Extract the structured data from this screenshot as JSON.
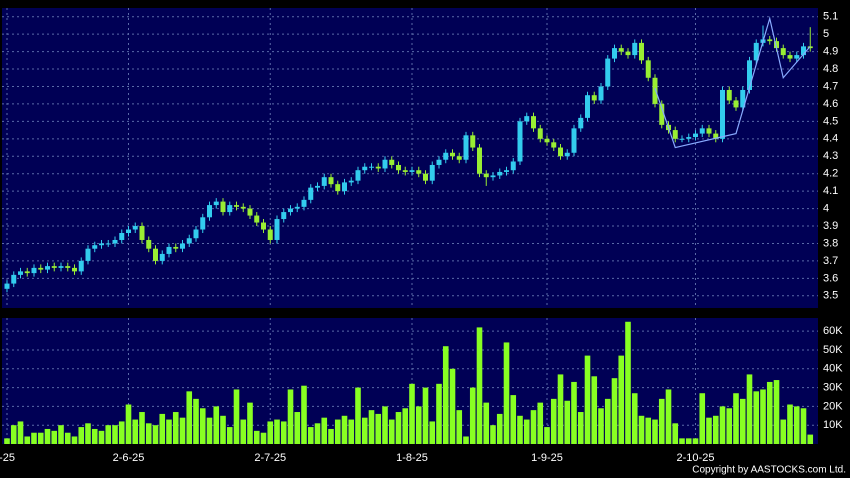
{
  "chart_data": {
    "type": "candlestick",
    "categories": [
      "-25",
      null,
      null,
      null,
      null,
      null,
      null,
      null,
      null,
      null,
      null,
      null,
      null,
      null,
      null,
      null,
      null,
      null,
      "2-6-25",
      null,
      null,
      null,
      null,
      null,
      null,
      null,
      null,
      null,
      null,
      null,
      null,
      null,
      null,
      null,
      null,
      null,
      null,
      null,
      null,
      "2-7-25",
      null,
      null,
      null,
      null,
      null,
      null,
      null,
      null,
      null,
      null,
      null,
      null,
      null,
      null,
      null,
      null,
      null,
      null,
      null,
      null,
      "1-8-25",
      null,
      null,
      null,
      null,
      null,
      null,
      null,
      null,
      null,
      null,
      null,
      null,
      null,
      null,
      null,
      null,
      null,
      null,
      null,
      "1-9-25",
      null,
      null,
      null,
      null,
      null,
      null,
      null,
      null,
      null,
      null,
      null,
      null,
      null,
      null,
      null,
      null,
      null,
      null,
      null,
      null,
      null,
      "2-10-25",
      null,
      null,
      null,
      null,
      null,
      null,
      null,
      null,
      null,
      null,
      null,
      null,
      null,
      null,
      null,
      null,
      null
    ],
    "open": [
      3.54,
      3.57,
      3.62,
      3.64,
      3.63,
      3.66,
      3.65,
      3.67,
      3.66,
      3.67,
      3.66,
      3.64,
      3.7,
      3.77,
      3.79,
      3.8,
      3.8,
      3.82,
      3.86,
      3.88,
      3.9,
      3.82,
      3.77,
      3.7,
      3.74,
      3.78,
      3.77,
      3.8,
      3.83,
      3.88,
      3.95,
      4.02,
      4.04,
      3.98,
      4.02,
      4.01,
      4.0,
      3.96,
      3.92,
      3.88,
      3.82,
      3.94,
      3.98,
      4.0,
      4.01,
      4.05,
      4.12,
      4.13,
      4.18,
      4.14,
      4.1,
      4.15,
      4.16,
      4.22,
      4.24,
      4.24,
      4.23,
      4.28,
      4.25,
      4.22,
      4.21,
      4.22,
      4.2,
      4.16,
      4.25,
      4.28,
      4.32,
      4.3,
      4.28,
      4.42,
      4.35,
      4.2,
      4.18,
      4.19,
      4.21,
      4.22,
      4.27,
      4.5,
      4.53,
      4.46,
      4.4,
      4.38,
      4.35,
      4.3,
      4.32,
      4.46,
      4.52,
      4.65,
      4.62,
      4.7,
      4.86,
      4.92,
      4.9,
      4.88,
      4.95,
      4.85,
      4.75,
      4.6,
      4.48,
      4.45,
      4.4,
      4.4,
      4.41,
      4.43,
      4.46,
      4.43,
      4.4,
      4.68,
      4.62,
      4.58,
      4.68,
      4.85,
      4.95,
      4.97,
      4.96,
      4.92,
      4.88,
      4.86,
      4.88,
      4.93
    ],
    "high": [
      3.59,
      3.64,
      3.66,
      3.66,
      3.68,
      3.68,
      3.69,
      3.69,
      3.69,
      3.69,
      3.68,
      3.72,
      3.79,
      3.81,
      3.82,
      3.82,
      3.84,
      3.88,
      3.9,
      3.92,
      3.92,
      3.84,
      3.79,
      3.76,
      3.8,
      3.8,
      3.82,
      3.85,
      3.9,
      3.97,
      4.04,
      4.06,
      4.06,
      4.04,
      4.04,
      4.03,
      4.02,
      3.98,
      3.94,
      3.9,
      3.96,
      4.0,
      4.02,
      4.03,
      4.07,
      4.14,
      4.15,
      4.2,
      4.2,
      4.16,
      4.17,
      4.18,
      4.24,
      4.26,
      4.26,
      4.26,
      4.3,
      4.3,
      4.27,
      4.24,
      4.24,
      4.24,
      4.22,
      4.27,
      4.3,
      4.34,
      4.34,
      4.32,
      4.44,
      4.44,
      4.37,
      4.22,
      4.21,
      4.23,
      4.24,
      4.29,
      4.52,
      4.55,
      4.55,
      4.48,
      4.42,
      4.4,
      4.37,
      4.34,
      4.48,
      4.54,
      4.67,
      4.67,
      4.72,
      4.88,
      4.94,
      4.94,
      4.92,
      4.97,
      4.97,
      4.87,
      4.77,
      4.62,
      4.5,
      4.47,
      4.42,
      4.43,
      4.45,
      4.48,
      4.48,
      4.45,
      4.7,
      4.7,
      4.64,
      4.7,
      4.87,
      4.97,
      5.05,
      4.99,
      4.98,
      4.94,
      4.9,
      4.9,
      4.95,
      5.04
    ],
    "low": [
      3.52,
      3.55,
      3.6,
      3.61,
      3.61,
      3.63,
      3.63,
      3.64,
      3.64,
      3.64,
      3.62,
      3.62,
      3.68,
      3.75,
      3.77,
      3.78,
      3.78,
      3.8,
      3.84,
      3.86,
      3.8,
      3.75,
      3.68,
      3.68,
      3.72,
      3.75,
      3.75,
      3.78,
      3.81,
      3.86,
      3.93,
      4.0,
      3.96,
      3.96,
      3.99,
      3.98,
      3.94,
      3.9,
      3.86,
      3.8,
      3.8,
      3.92,
      3.96,
      3.98,
      3.99,
      4.03,
      4.1,
      4.11,
      4.12,
      4.08,
      4.08,
      4.13,
      4.14,
      4.2,
      4.22,
      4.21,
      4.21,
      4.23,
      4.2,
      4.19,
      4.19,
      4.18,
      4.14,
      4.14,
      4.23,
      4.26,
      4.28,
      4.26,
      4.26,
      4.33,
      4.18,
      4.13,
      4.16,
      4.17,
      4.19,
      4.2,
      4.25,
      4.48,
      4.44,
      4.38,
      4.36,
      4.33,
      4.28,
      4.28,
      4.3,
      4.44,
      4.5,
      4.6,
      4.6,
      4.68,
      4.84,
      4.88,
      4.86,
      4.86,
      4.83,
      4.73,
      4.58,
      4.46,
      4.43,
      4.38,
      4.38,
      4.38,
      4.39,
      4.41,
      4.41,
      4.38,
      4.38,
      4.6,
      4.56,
      4.56,
      4.66,
      4.83,
      4.93,
      4.94,
      4.9,
      4.86,
      4.84,
      4.84,
      4.86,
      4.9
    ],
    "close": [
      3.57,
      3.62,
      3.64,
      3.63,
      3.66,
      3.65,
      3.67,
      3.66,
      3.67,
      3.66,
      3.64,
      3.7,
      3.77,
      3.79,
      3.8,
      3.8,
      3.82,
      3.86,
      3.88,
      3.9,
      3.82,
      3.77,
      3.7,
      3.74,
      3.78,
      3.77,
      3.8,
      3.83,
      3.88,
      3.95,
      4.02,
      4.04,
      3.98,
      4.02,
      4.01,
      4.0,
      3.96,
      3.92,
      3.88,
      3.82,
      3.94,
      3.98,
      4.0,
      4.01,
      4.05,
      4.12,
      4.13,
      4.18,
      4.14,
      4.1,
      4.15,
      4.16,
      4.22,
      4.24,
      4.24,
      4.23,
      4.28,
      4.25,
      4.22,
      4.21,
      4.22,
      4.2,
      4.16,
      4.25,
      4.28,
      4.32,
      4.3,
      4.28,
      4.42,
      4.35,
      4.2,
      4.18,
      4.19,
      4.21,
      4.22,
      4.27,
      4.5,
      4.53,
      4.46,
      4.4,
      4.38,
      4.35,
      4.3,
      4.32,
      4.46,
      4.52,
      4.65,
      4.62,
      4.7,
      4.86,
      4.92,
      4.9,
      4.88,
      4.95,
      4.85,
      4.75,
      4.6,
      4.48,
      4.45,
      4.4,
      4.4,
      4.41,
      4.43,
      4.46,
      4.43,
      4.4,
      4.68,
      4.62,
      4.58,
      4.68,
      4.85,
      4.95,
      4.97,
      4.96,
      4.92,
      4.88,
      4.86,
      4.88,
      4.93,
      4.92
    ],
    "up_color": "#33ccee",
    "down_color": "#99ee33",
    "ylim": [
      3.43,
      5.15
    ],
    "yticks": [
      3.5,
      3.6,
      3.7,
      3.8,
      3.9,
      4,
      4.1,
      4.2,
      4.3,
      4.4,
      4.5,
      4.6,
      4.7,
      4.8,
      4.9,
      5,
      5.1
    ],
    "grid": true,
    "overlay": {
      "x": [
        96,
        99,
        108,
        113,
        115,
        119
      ],
      "values": [
        4.69,
        4.35,
        4.43,
        5.09,
        4.75,
        4.93
      ],
      "color": "#88aaff"
    },
    "volume": {
      "color": "#88ff22",
      "values": [
        3000,
        10000,
        12000,
        4000,
        6000,
        6000,
        8000,
        7000,
        10000,
        6000,
        4000,
        9000,
        11000,
        8000,
        7000,
        10000,
        10000,
        12000,
        21000,
        13000,
        17000,
        11000,
        10000,
        16000,
        13000,
        17000,
        14000,
        28000,
        24000,
        19000,
        14000,
        20000,
        15000,
        9000,
        29000,
        13000,
        22000,
        7000,
        6000,
        12000,
        13000,
        12000,
        29000,
        17000,
        31000,
        9000,
        11000,
        14000,
        8000,
        13000,
        15000,
        13000,
        30000,
        14000,
        18000,
        16000,
        20000,
        13000,
        17000,
        19000,
        32000,
        20000,
        30000,
        12000,
        32000,
        52000,
        40000,
        18000,
        4000,
        30000,
        62000,
        22000,
        10000,
        16000,
        54000,
        26000,
        15000,
        13000,
        18000,
        22000,
        9000,
        24000,
        37000,
        23000,
        33000,
        17000,
        47000,
        36000,
        19000,
        24000,
        35000,
        47000,
        65000,
        27000,
        15000,
        14000,
        13000,
        24000,
        29000,
        11000,
        3000,
        3000,
        3000,
        27000,
        14000,
        15000,
        20000,
        19000,
        27000,
        24000,
        37000,
        28000,
        29000,
        33000,
        34000,
        13000,
        21000,
        20000,
        19000,
        5000
      ],
      "ylim": [
        0,
        67000
      ],
      "yticks": [
        {
          "value": 10000,
          "label": "10K"
        },
        {
          "value": 20000,
          "label": "20K"
        },
        {
          "value": 30000,
          "label": "30K"
        },
        {
          "value": 40000,
          "label": "40K"
        },
        {
          "value": 50000,
          "label": "50K"
        },
        {
          "value": 60000,
          "label": "60K"
        }
      ]
    },
    "copyright": "Copyright by AASTOCKS.com Ltd."
  }
}
